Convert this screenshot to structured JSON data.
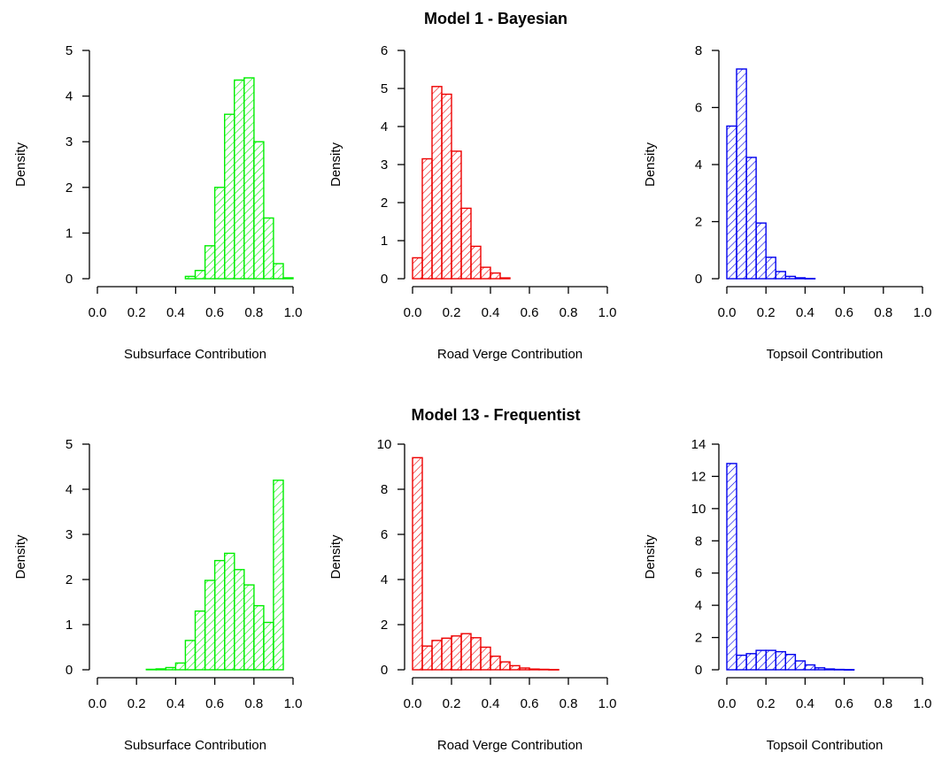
{
  "rows": [
    {
      "title": "Model 1 - Bayesian"
    },
    {
      "title": "Model 13 - Frequentist"
    }
  ],
  "chart_data": [
    {
      "type": "histogram",
      "row": 0,
      "col": 0,
      "color": "#00ee00",
      "xlabel": "Subsurface Contribution",
      "ylabel": "Density",
      "xlim": [
        0,
        1
      ],
      "ylim": [
        0,
        5
      ],
      "xticks": [
        "0.0",
        "0.2",
        "0.4",
        "0.6",
        "0.8",
        "1.0"
      ],
      "yticks": [
        "0",
        "1",
        "2",
        "3",
        "4",
        "5"
      ],
      "bin_width": 0.05,
      "bins": [
        [
          0.45,
          0.05
        ],
        [
          0.5,
          0.18
        ],
        [
          0.55,
          0.72
        ],
        [
          0.6,
          2.0
        ],
        [
          0.65,
          3.6
        ],
        [
          0.7,
          4.35
        ],
        [
          0.75,
          4.4
        ],
        [
          0.8,
          3.0
        ],
        [
          0.85,
          1.33
        ],
        [
          0.9,
          0.33
        ],
        [
          0.95,
          0.02
        ]
      ]
    },
    {
      "type": "histogram",
      "row": 0,
      "col": 1,
      "color": "#ee0000",
      "xlabel": "Road Verge Contribution",
      "ylabel": "Density",
      "xlim": [
        0,
        1
      ],
      "ylim": [
        0,
        6
      ],
      "xticks": [
        "0.0",
        "0.2",
        "0.4",
        "0.6",
        "0.8",
        "1.0"
      ],
      "yticks": [
        "0",
        "1",
        "2",
        "3",
        "4",
        "5",
        "6"
      ],
      "bin_width": 0.05,
      "bins": [
        [
          0.0,
          0.55
        ],
        [
          0.05,
          3.15
        ],
        [
          0.1,
          5.05
        ],
        [
          0.15,
          4.85
        ],
        [
          0.2,
          3.35
        ],
        [
          0.25,
          1.85
        ],
        [
          0.3,
          0.85
        ],
        [
          0.35,
          0.3
        ],
        [
          0.4,
          0.15
        ],
        [
          0.45,
          0.02
        ]
      ]
    },
    {
      "type": "histogram",
      "row": 0,
      "col": 2,
      "color": "#0000ee",
      "xlabel": "Topsoil Contribution",
      "ylabel": "Density",
      "xlim": [
        0,
        1
      ],
      "ylim": [
        0,
        8
      ],
      "xticks": [
        "0.0",
        "0.2",
        "0.4",
        "0.6",
        "0.8",
        "1.0"
      ],
      "yticks": [
        "0",
        "2",
        "4",
        "6",
        "8"
      ],
      "bin_width": 0.05,
      "bins": [
        [
          0.0,
          5.35
        ],
        [
          0.05,
          7.35
        ],
        [
          0.1,
          4.25
        ],
        [
          0.15,
          1.95
        ],
        [
          0.2,
          0.75
        ],
        [
          0.25,
          0.25
        ],
        [
          0.3,
          0.08
        ],
        [
          0.35,
          0.03
        ],
        [
          0.4,
          0.01
        ]
      ]
    },
    {
      "type": "histogram",
      "row": 1,
      "col": 0,
      "color": "#00ee00",
      "xlabel": "Subsurface Contribution",
      "ylabel": "Density",
      "xlim": [
        0,
        1
      ],
      "ylim": [
        0,
        5
      ],
      "xticks": [
        "0.0",
        "0.2",
        "0.4",
        "0.6",
        "0.8",
        "1.0"
      ],
      "yticks": [
        "0",
        "1",
        "2",
        "3",
        "4",
        "5"
      ],
      "bin_width": 0.05,
      "bins": [
        [
          0.25,
          0.01
        ],
        [
          0.3,
          0.02
        ],
        [
          0.35,
          0.05
        ],
        [
          0.4,
          0.15
        ],
        [
          0.45,
          0.65
        ],
        [
          0.5,
          1.3
        ],
        [
          0.55,
          1.98
        ],
        [
          0.6,
          2.42
        ],
        [
          0.65,
          2.58
        ],
        [
          0.7,
          2.22
        ],
        [
          0.75,
          1.88
        ],
        [
          0.8,
          1.42
        ],
        [
          0.85,
          1.05
        ],
        [
          0.9,
          4.2
        ]
      ]
    },
    {
      "type": "histogram",
      "row": 1,
      "col": 1,
      "color": "#ee0000",
      "xlabel": "Road Verge Contribution",
      "ylabel": "Density",
      "xlim": [
        0,
        1
      ],
      "ylim": [
        0,
        10
      ],
      "xticks": [
        "0.0",
        "0.2",
        "0.4",
        "0.6",
        "0.8",
        "1.0"
      ],
      "yticks": [
        "0",
        "2",
        "4",
        "6",
        "8",
        "10"
      ],
      "bin_width": 0.05,
      "bins": [
        [
          0.0,
          9.4
        ],
        [
          0.05,
          1.05
        ],
        [
          0.1,
          1.3
        ],
        [
          0.15,
          1.4
        ],
        [
          0.2,
          1.5
        ],
        [
          0.25,
          1.6
        ],
        [
          0.3,
          1.42
        ],
        [
          0.35,
          1.0
        ],
        [
          0.4,
          0.6
        ],
        [
          0.45,
          0.35
        ],
        [
          0.5,
          0.18
        ],
        [
          0.55,
          0.08
        ],
        [
          0.6,
          0.03
        ],
        [
          0.65,
          0.02
        ],
        [
          0.7,
          0.01
        ]
      ]
    },
    {
      "type": "histogram",
      "row": 1,
      "col": 2,
      "color": "#0000ee",
      "xlabel": "Topsoil Contribution",
      "ylabel": "Density",
      "xlim": [
        0,
        1
      ],
      "ylim": [
        0,
        14
      ],
      "xticks": [
        "0.0",
        "0.2",
        "0.4",
        "0.6",
        "0.8",
        "1.0"
      ],
      "yticks": [
        "0",
        "2",
        "4",
        "6",
        "8",
        "10",
        "12",
        "14"
      ],
      "bin_width": 0.05,
      "bins": [
        [
          0.0,
          12.8
        ],
        [
          0.05,
          0.9
        ],
        [
          0.1,
          1.0
        ],
        [
          0.15,
          1.2
        ],
        [
          0.2,
          1.2
        ],
        [
          0.25,
          1.12
        ],
        [
          0.3,
          0.95
        ],
        [
          0.35,
          0.55
        ],
        [
          0.4,
          0.3
        ],
        [
          0.45,
          0.12
        ],
        [
          0.5,
          0.05
        ],
        [
          0.55,
          0.02
        ],
        [
          0.6,
          0.01
        ]
      ]
    }
  ]
}
